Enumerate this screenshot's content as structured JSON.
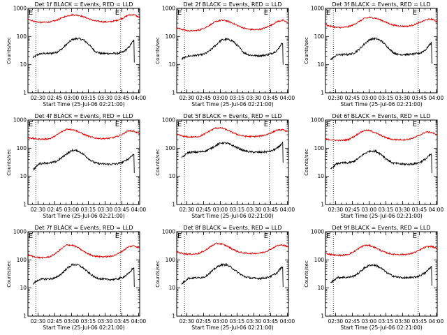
{
  "colors": {
    "events": "#000000",
    "lld": "#e00000",
    "axis": "#000000",
    "background": "#ffffff"
  },
  "shared": {
    "x_ticks": [
      {
        "t": 9,
        "label": "02:30"
      },
      {
        "t": 24,
        "label": "02:45"
      },
      {
        "t": 39,
        "label": "03:00"
      },
      {
        "t": 54,
        "label": "03:15"
      },
      {
        "t": 69,
        "label": "03:30"
      },
      {
        "t": 84,
        "label": "03:45"
      },
      {
        "t": 99,
        "label": "04:00"
      }
    ],
    "y_ticks": [
      {
        "v": 1,
        "label": "1"
      },
      {
        "v": 10,
        "label": "10"
      },
      {
        "v": 100,
        "label": "100"
      },
      {
        "v": 1000,
        "label": "1000"
      }
    ],
    "ylabel": "Counts/sec",
    "xlim_minutes": [
      0,
      100
    ],
    "ylim": [
      1,
      1000
    ],
    "yscale": "log",
    "marker_label": "E",
    "marker_minutes": [
      7,
      83
    ]
  },
  "chart_data": [
    {
      "type": "line",
      "title": "Det 1f BLACK = Events, RED = LLD",
      "xlabel": "Start Time (25-Jul-06 02:21:00)",
      "ylabel": "Counts/sec",
      "series": [
        {
          "name": "Events",
          "color": "#000000",
          "start": 4.5,
          "end": 95,
          "x": [
            4.5,
            10,
            15,
            20,
            25,
            30,
            35,
            40,
            45,
            50,
            55,
            60,
            65,
            70,
            75,
            80,
            85,
            90,
            93,
            95,
            95.2
          ],
          "y": [
            18,
            24,
            25,
            25,
            27,
            35,
            55,
            80,
            85,
            75,
            50,
            30,
            25,
            25,
            25,
            25,
            28,
            40,
            60,
            75,
            12
          ]
        },
        {
          "name": "LLD",
          "color": "#e00000",
          "start": 0,
          "end": 100,
          "x": [
            0,
            5,
            10,
            15,
            20,
            25,
            30,
            35,
            40,
            45,
            50,
            55,
            60,
            65,
            70,
            75,
            80,
            85,
            90,
            95,
            100
          ],
          "y": [
            420,
            350,
            320,
            320,
            330,
            370,
            450,
            540,
            590,
            570,
            500,
            420,
            360,
            340,
            330,
            340,
            380,
            450,
            580,
            600,
            470
          ]
        }
      ]
    },
    {
      "type": "line",
      "title": "Det 2f BLACK = Events, RED = LLD",
      "xlabel": "Start Time (25-Jul-06 02:21:00)",
      "ylabel": "Counts/sec",
      "series": [
        {
          "name": "Events",
          "color": "#000000",
          "start": 4.5,
          "end": 95,
          "x": [
            4.5,
            10,
            15,
            20,
            25,
            30,
            35,
            40,
            45,
            50,
            55,
            60,
            65,
            70,
            75,
            80,
            85,
            90,
            93,
            95,
            95.2
          ],
          "y": [
            16,
            20,
            21,
            22,
            24,
            32,
            50,
            75,
            80,
            70,
            45,
            27,
            22,
            21,
            21,
            22,
            25,
            32,
            50,
            62,
            10
          ]
        },
        {
          "name": "LLD",
          "color": "#e00000",
          "start": 0,
          "end": 100,
          "x": [
            0,
            5,
            10,
            15,
            20,
            25,
            30,
            35,
            40,
            45,
            50,
            55,
            60,
            65,
            70,
            75,
            80,
            85,
            90,
            95,
            100
          ],
          "y": [
            200,
            180,
            160,
            160,
            170,
            200,
            260,
            340,
            380,
            360,
            300,
            240,
            200,
            180,
            175,
            180,
            210,
            260,
            340,
            380,
            300
          ]
        }
      ]
    },
    {
      "type": "line",
      "title": "Det 3f BLACK = Events, RED = LLD",
      "xlabel": "Start Time (25-Jul-06 02:21:00)",
      "ylabel": "Counts/sec",
      "series": [
        {
          "name": "Events",
          "color": "#000000",
          "start": 4.5,
          "end": 95,
          "x": [
            4.5,
            10,
            15,
            20,
            25,
            30,
            35,
            40,
            45,
            50,
            55,
            60,
            65,
            70,
            75,
            80,
            85,
            90,
            93,
            95,
            95.2
          ],
          "y": [
            15,
            22,
            23,
            23,
            25,
            35,
            55,
            80,
            85,
            70,
            45,
            28,
            23,
            23,
            23,
            24,
            26,
            35,
            50,
            62,
            11
          ]
        },
        {
          "name": "LLD",
          "color": "#e00000",
          "start": 0,
          "end": 100,
          "x": [
            0,
            5,
            10,
            15,
            20,
            25,
            30,
            35,
            40,
            45,
            50,
            55,
            60,
            65,
            70,
            75,
            80,
            85,
            90,
            95,
            100
          ],
          "y": [
            260,
            230,
            210,
            210,
            220,
            260,
            340,
            440,
            480,
            450,
            380,
            310,
            260,
            240,
            230,
            235,
            270,
            320,
            390,
            420,
            340
          ]
        }
      ]
    },
    {
      "type": "line",
      "title": "Det 4f BLACK = Events, RED = LLD",
      "xlabel": "Start Time (25-Jul-06 02:21:00)",
      "ylabel": "Counts/sec",
      "series": [
        {
          "name": "Events",
          "color": "#000000",
          "start": 4.5,
          "end": 95,
          "x": [
            4.5,
            10,
            15,
            20,
            25,
            30,
            35,
            40,
            45,
            50,
            55,
            60,
            65,
            70,
            75,
            80,
            85,
            90,
            93,
            95,
            95.2
          ],
          "y": [
            17,
            28,
            30,
            30,
            33,
            45,
            65,
            85,
            80,
            60,
            40,
            30,
            28,
            27,
            27,
            28,
            32,
            42,
            55,
            62,
            13
          ]
        },
        {
          "name": "LLD",
          "color": "#e00000",
          "start": 0,
          "end": 100,
          "x": [
            0,
            5,
            10,
            15,
            20,
            25,
            30,
            35,
            40,
            45,
            50,
            55,
            60,
            65,
            70,
            75,
            80,
            85,
            90,
            95,
            100
          ],
          "y": [
            240,
            220,
            210,
            210,
            220,
            280,
            380,
            480,
            460,
            390,
            310,
            260,
            230,
            220,
            220,
            230,
            260,
            320,
            420,
            400,
            330
          ]
        }
      ]
    },
    {
      "type": "line",
      "title": "Det 5f BLACK = Events, RED = LLD",
      "xlabel": "Start Time (25-Jul-06 02:21:00)",
      "ylabel": "Counts/sec",
      "series": [
        {
          "name": "Events",
          "color": "#000000",
          "start": 4.5,
          "end": 95,
          "x": [
            4.5,
            10,
            15,
            20,
            25,
            30,
            35,
            40,
            45,
            50,
            55,
            60,
            65,
            70,
            75,
            80,
            85,
            90,
            93,
            95,
            95.2
          ],
          "y": [
            45,
            70,
            72,
            73,
            78,
            95,
            125,
            155,
            150,
            125,
            100,
            82,
            75,
            72,
            72,
            74,
            80,
            100,
            130,
            160,
            30
          ]
        },
        {
          "name": "LLD",
          "color": "#e00000",
          "start": 0,
          "end": 100,
          "x": [
            0,
            5,
            10,
            15,
            20,
            25,
            30,
            35,
            40,
            45,
            50,
            55,
            60,
            65,
            70,
            75,
            80,
            85,
            90,
            95,
            100
          ],
          "y": [
            310,
            270,
            250,
            250,
            260,
            320,
            420,
            520,
            520,
            450,
            360,
            300,
            270,
            260,
            260,
            270,
            300,
            360,
            440,
            450,
            380
          ]
        }
      ]
    },
    {
      "type": "line",
      "title": "Det 6f BLACK = Events, RED = LLD",
      "xlabel": "Start Time (25-Jul-06 02:21:00)",
      "ylabel": "Counts/sec",
      "series": [
        {
          "name": "Events",
          "color": "#000000",
          "start": 4.5,
          "end": 95,
          "x": [
            4.5,
            10,
            15,
            20,
            25,
            30,
            35,
            40,
            45,
            50,
            55,
            60,
            65,
            70,
            75,
            80,
            85,
            90,
            93,
            95,
            95.2
          ],
          "y": [
            18,
            28,
            30,
            30,
            33,
            45,
            65,
            80,
            78,
            60,
            40,
            30,
            28,
            27,
            27,
            28,
            32,
            42,
            55,
            62,
            13
          ]
        },
        {
          "name": "LLD",
          "color": "#e00000",
          "start": 0,
          "end": 100,
          "x": [
            0,
            5,
            10,
            15,
            20,
            25,
            30,
            35,
            40,
            45,
            50,
            55,
            60,
            65,
            70,
            75,
            80,
            85,
            90,
            95,
            100
          ],
          "y": [
            210,
            200,
            190,
            190,
            200,
            250,
            340,
            430,
            420,
            350,
            280,
            230,
            205,
            200,
            200,
            210,
            240,
            300,
            380,
            360,
            300
          ]
        }
      ]
    },
    {
      "type": "line",
      "title": "Det 7f BLACK = Events, RED = LLD",
      "xlabel": "Start Time (25-Jul-06 02:21:00)",
      "ylabel": "Counts/sec",
      "series": [
        {
          "name": "Events",
          "color": "#000000",
          "start": 4.5,
          "end": 95,
          "x": [
            4.5,
            10,
            15,
            20,
            25,
            30,
            35,
            40,
            45,
            50,
            55,
            60,
            65,
            70,
            75,
            80,
            85,
            90,
            93,
            95,
            95.2
          ],
          "y": [
            14,
            20,
            21,
            21,
            23,
            32,
            50,
            68,
            66,
            50,
            33,
            24,
            21,
            20,
            20,
            21,
            24,
            32,
            45,
            55,
            11
          ]
        },
        {
          "name": "LLD",
          "color": "#e00000",
          "start": 0,
          "end": 100,
          "x": [
            0,
            5,
            10,
            15,
            20,
            25,
            30,
            35,
            40,
            45,
            50,
            55,
            60,
            65,
            70,
            75,
            80,
            85,
            90,
            95,
            100
          ],
          "y": [
            150,
            130,
            120,
            120,
            130,
            170,
            250,
            340,
            330,
            270,
            200,
            155,
            135,
            130,
            130,
            135,
            160,
            210,
            290,
            320,
            260
          ]
        }
      ]
    },
    {
      "type": "line",
      "title": "Det 8f BLACK = Events, RED = LLD",
      "xlabel": "Start Time (25-Jul-06 02:21:00)",
      "ylabel": "Counts/sec",
      "series": [
        {
          "name": "Events",
          "color": "#000000",
          "start": 4.5,
          "end": 95,
          "x": [
            4.5,
            10,
            15,
            20,
            25,
            30,
            35,
            40,
            45,
            50,
            55,
            60,
            65,
            70,
            75,
            80,
            85,
            90,
            93,
            95,
            95.2
          ],
          "y": [
            14,
            22,
            23,
            23,
            25,
            35,
            52,
            68,
            66,
            50,
            35,
            26,
            23,
            22,
            22,
            23,
            27,
            35,
            50,
            58,
            11
          ]
        },
        {
          "name": "LLD",
          "color": "#e00000",
          "start": 0,
          "end": 100,
          "x": [
            0,
            5,
            10,
            15,
            20,
            25,
            30,
            35,
            40,
            45,
            50,
            55,
            60,
            65,
            70,
            75,
            80,
            85,
            90,
            95,
            100
          ],
          "y": [
            190,
            170,
            160,
            160,
            170,
            210,
            290,
            380,
            370,
            310,
            240,
            195,
            175,
            170,
            170,
            175,
            200,
            250,
            320,
            340,
            280
          ]
        }
      ]
    },
    {
      "type": "line",
      "title": "Det 9f BLACK = Events, RED = LLD",
      "xlabel": "Start Time (25-Jul-06 02:21:00)",
      "ylabel": "Counts/sec",
      "series": [
        {
          "name": "Events",
          "color": "#000000",
          "start": 4.5,
          "end": 95,
          "x": [
            4.5,
            10,
            15,
            20,
            25,
            30,
            35,
            40,
            45,
            50,
            55,
            60,
            65,
            70,
            75,
            80,
            85,
            90,
            93,
            95,
            95.2
          ],
          "y": [
            15,
            23,
            24,
            24,
            26,
            35,
            52,
            66,
            64,
            50,
            35,
            27,
            24,
            23,
            23,
            24,
            28,
            36,
            50,
            58,
            12
          ]
        },
        {
          "name": "LLD",
          "color": "#e00000",
          "start": 0,
          "end": 100,
          "x": [
            0,
            5,
            10,
            15,
            20,
            25,
            30,
            35,
            40,
            45,
            50,
            55,
            60,
            65,
            70,
            75,
            80,
            85,
            90,
            95,
            100
          ],
          "y": [
            170,
            155,
            145,
            145,
            155,
            190,
            260,
            330,
            320,
            270,
            210,
            175,
            160,
            155,
            155,
            160,
            185,
            230,
            290,
            300,
            250
          ]
        }
      ]
    }
  ]
}
